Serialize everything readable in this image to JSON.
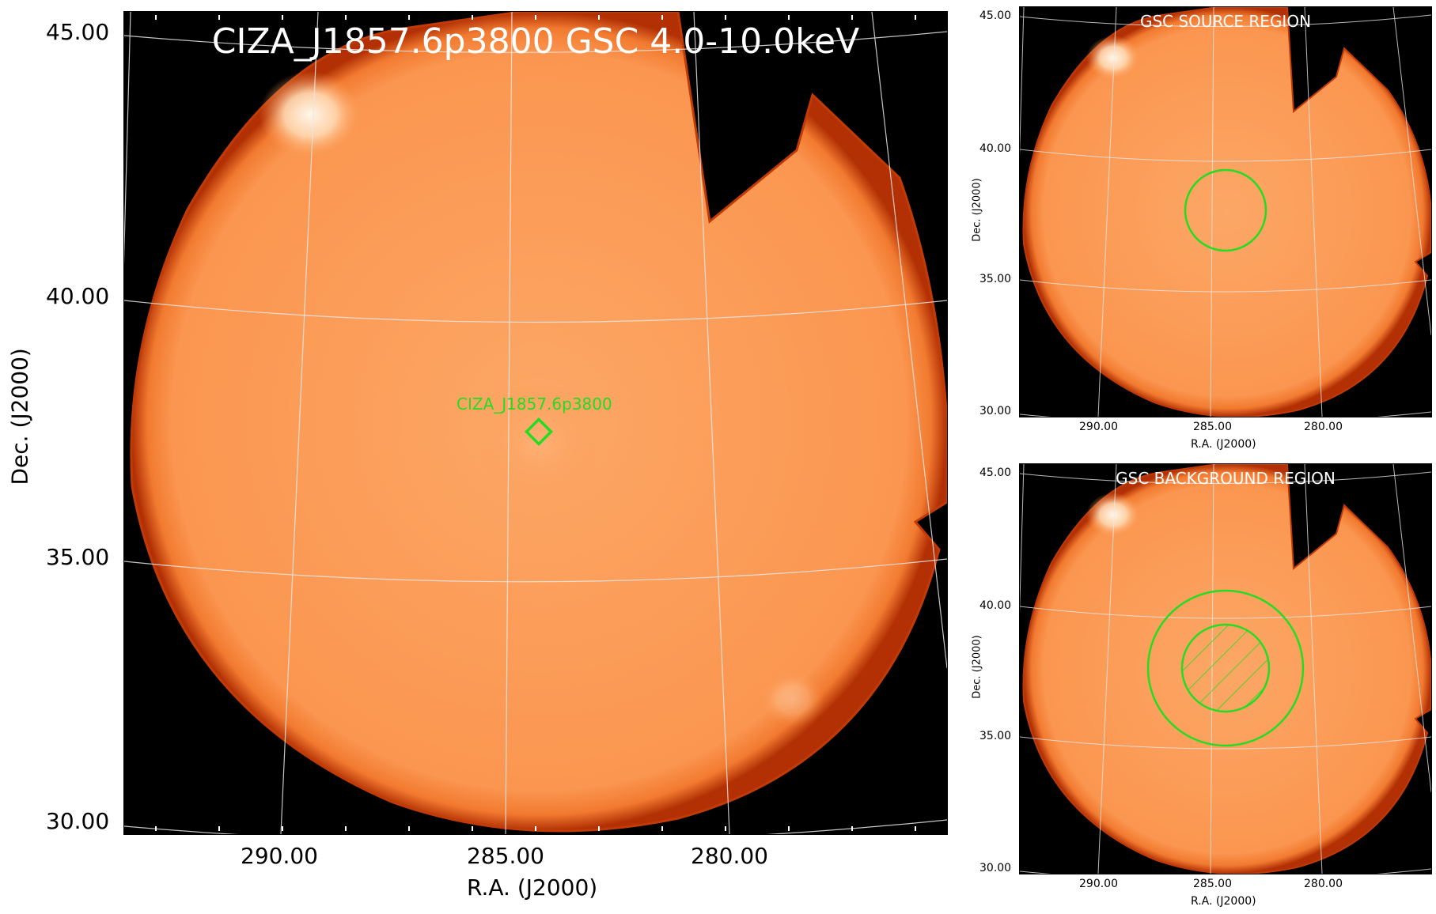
{
  "main": {
    "title": "CIZA_J1857.6p3800 GSC 4.0-10.0keV",
    "source_label": "CIZA_J1857.6p3800",
    "xlabel": "R.A. (J2000)",
    "ylabel": "Dec. (J2000)",
    "xticks": [
      "290.00",
      "285.00",
      "280.00"
    ],
    "yticks": [
      "45.00",
      "40.00",
      "35.00",
      "30.00"
    ]
  },
  "source_panel": {
    "title": "GSC SOURCE REGION",
    "xlabel": "R.A. (J2000)",
    "ylabel": "Dec. (J2000)",
    "xticks": [
      "290.00",
      "285.00",
      "280.00"
    ],
    "yticks": [
      "45.00",
      "40.00",
      "35.00",
      "30.00"
    ]
  },
  "background_panel": {
    "title": "GSC BACKGROUND REGION",
    "xlabel": "R.A. (J2000)",
    "ylabel": "Dec. (J2000)",
    "xticks": [
      "290.00",
      "285.00",
      "280.00"
    ],
    "yticks": [
      "45.00",
      "40.00",
      "35.00",
      "30.00"
    ]
  },
  "colors": {
    "field": "#fb9a52",
    "edge": "#c23a05",
    "background": "#000000",
    "region": "#22dd22",
    "grid": "#e8e8e8"
  }
}
